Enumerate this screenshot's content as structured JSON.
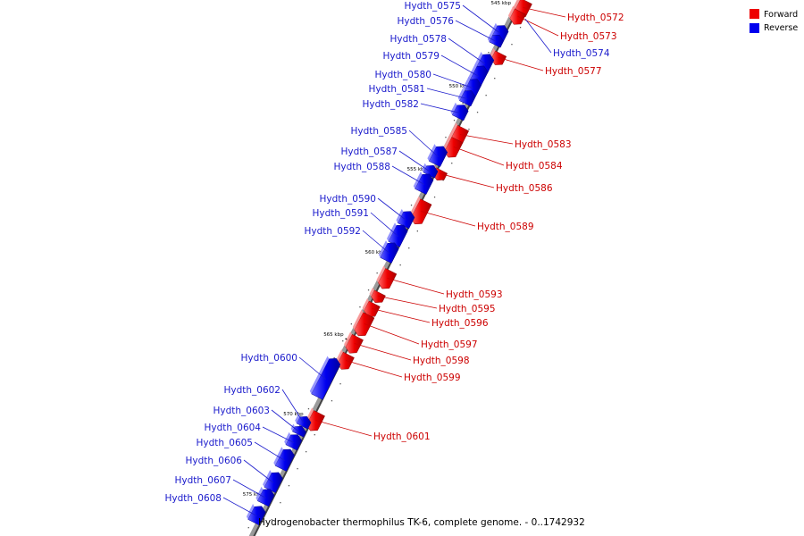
{
  "caption": "Hydrogenobacter thermophilus TK-6, complete genome. - 0..1742932",
  "legend": [
    {
      "label": "Forward",
      "color": "#ee0000"
    },
    {
      "label": "Reverse",
      "color": "#0000ee"
    }
  ],
  "colors": {
    "forward": "#ee0000",
    "reverse": "#0000ee",
    "forward_label": "#cc0000",
    "reverse_label": "#1a1acc"
  },
  "ticks": [
    "545 kbp",
    "550 kbp",
    "555 kbp",
    "560 kbp",
    "565 kbp",
    "570 kbp",
    "575 kbp"
  ],
  "genes": [
    {
      "name": "Hydth_0572",
      "strand": "forward"
    },
    {
      "name": "Hydth_0573",
      "strand": "forward"
    },
    {
      "name": "Hydth_0574",
      "strand": "reverse"
    },
    {
      "name": "Hydth_0575",
      "strand": "reverse"
    },
    {
      "name": "Hydth_0576",
      "strand": "reverse"
    },
    {
      "name": "Hydth_0577",
      "strand": "forward"
    },
    {
      "name": "Hydth_0578",
      "strand": "reverse"
    },
    {
      "name": "Hydth_0579",
      "strand": "reverse"
    },
    {
      "name": "Hydth_0580",
      "strand": "reverse"
    },
    {
      "name": "Hydth_0581",
      "strand": "reverse"
    },
    {
      "name": "Hydth_0582",
      "strand": "reverse"
    },
    {
      "name": "Hydth_0583",
      "strand": "forward"
    },
    {
      "name": "Hydth_0584",
      "strand": "forward"
    },
    {
      "name": "Hydth_0585",
      "strand": "reverse"
    },
    {
      "name": "Hydth_0586",
      "strand": "forward"
    },
    {
      "name": "Hydth_0587",
      "strand": "reverse"
    },
    {
      "name": "Hydth_0588",
      "strand": "reverse"
    },
    {
      "name": "Hydth_0589",
      "strand": "forward"
    },
    {
      "name": "Hydth_0590",
      "strand": "reverse"
    },
    {
      "name": "Hydth_0591",
      "strand": "reverse"
    },
    {
      "name": "Hydth_0592",
      "strand": "reverse"
    },
    {
      "name": "Hydth_0593",
      "strand": "forward"
    },
    {
      "name": "Hydth_0595",
      "strand": "forward"
    },
    {
      "name": "Hydth_0596",
      "strand": "forward"
    },
    {
      "name": "Hydth_0597",
      "strand": "forward"
    },
    {
      "name": "Hydth_0598",
      "strand": "forward"
    },
    {
      "name": "Hydth_0599",
      "strand": "forward"
    },
    {
      "name": "Hydth_0600",
      "strand": "reverse"
    },
    {
      "name": "Hydth_0601",
      "strand": "forward"
    },
    {
      "name": "Hydth_0602",
      "strand": "reverse"
    },
    {
      "name": "Hydth_0603",
      "strand": "reverse"
    },
    {
      "name": "Hydth_0604",
      "strand": "reverse"
    },
    {
      "name": "Hydth_0605",
      "strand": "reverse"
    },
    {
      "name": "Hydth_0606",
      "strand": "reverse"
    },
    {
      "name": "Hydth_0607",
      "strand": "reverse"
    },
    {
      "name": "Hydth_0608",
      "strand": "reverse"
    }
  ]
}
